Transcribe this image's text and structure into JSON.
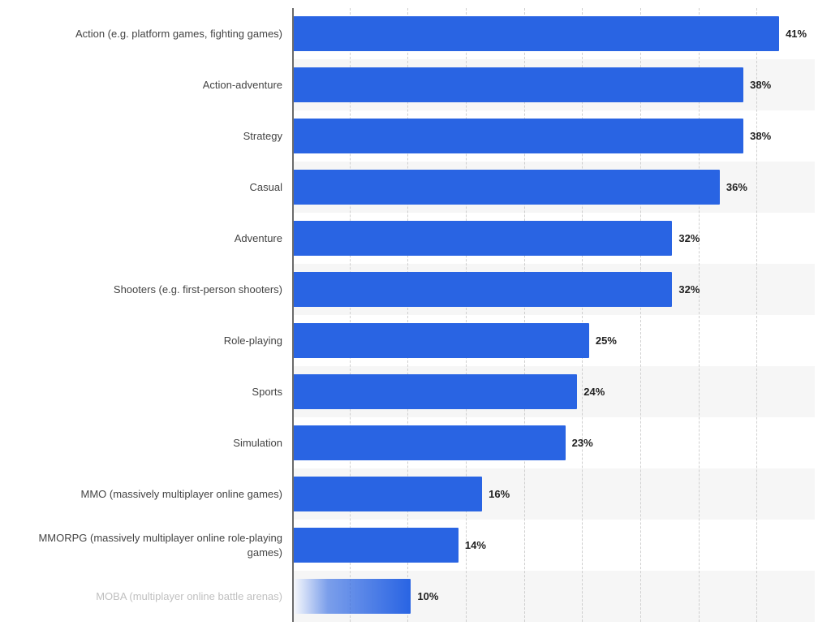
{
  "chart": {
    "type": "horizontal-bar",
    "x_max": 44,
    "x_gridline_step": 5,
    "x_gridline_count": 9,
    "bar_color": "#2964e3",
    "faded_bar": true,
    "stripe_colors": [
      "#ffffff",
      "#f6f6f6"
    ],
    "axis_color": "#6b6b6b",
    "gridline_color": "#cfcfcf",
    "label_color": "#444444",
    "faded_label_color": "#c0c0c0",
    "value_color": "#222222",
    "label_fontsize": 13,
    "value_fontsize": 13,
    "value_fontweight": "bold",
    "bar_height_ratio": 0.68,
    "categories": [
      {
        "label": "Action (e.g. platform games, fighting games)",
        "value": 41,
        "display": "41%",
        "faded": false
      },
      {
        "label": "Action-adventure",
        "value": 38,
        "display": "38%",
        "faded": false
      },
      {
        "label": "Strategy",
        "value": 38,
        "display": "38%",
        "faded": false
      },
      {
        "label": "Casual",
        "value": 36,
        "display": "36%",
        "faded": false
      },
      {
        "label": "Adventure",
        "value": 32,
        "display": "32%",
        "faded": false
      },
      {
        "label": "Shooters (e.g. first-person shooters)",
        "value": 32,
        "display": "32%",
        "faded": false
      },
      {
        "label": "Role-playing",
        "value": 25,
        "display": "25%",
        "faded": false
      },
      {
        "label": "Sports",
        "value": 24,
        "display": "24%",
        "faded": false
      },
      {
        "label": "Simulation",
        "value": 23,
        "display": "23%",
        "faded": false
      },
      {
        "label": "MMO (massively multiplayer online games)",
        "value": 16,
        "display": "16%",
        "faded": false
      },
      {
        "label": "MMORPG (massively multiplayer online role-playing games)",
        "value": 14,
        "display": "14%",
        "faded": false
      },
      {
        "label": "MOBA (multiplayer online battle arenas)",
        "value": 10,
        "display": "10%",
        "faded": true
      }
    ]
  }
}
